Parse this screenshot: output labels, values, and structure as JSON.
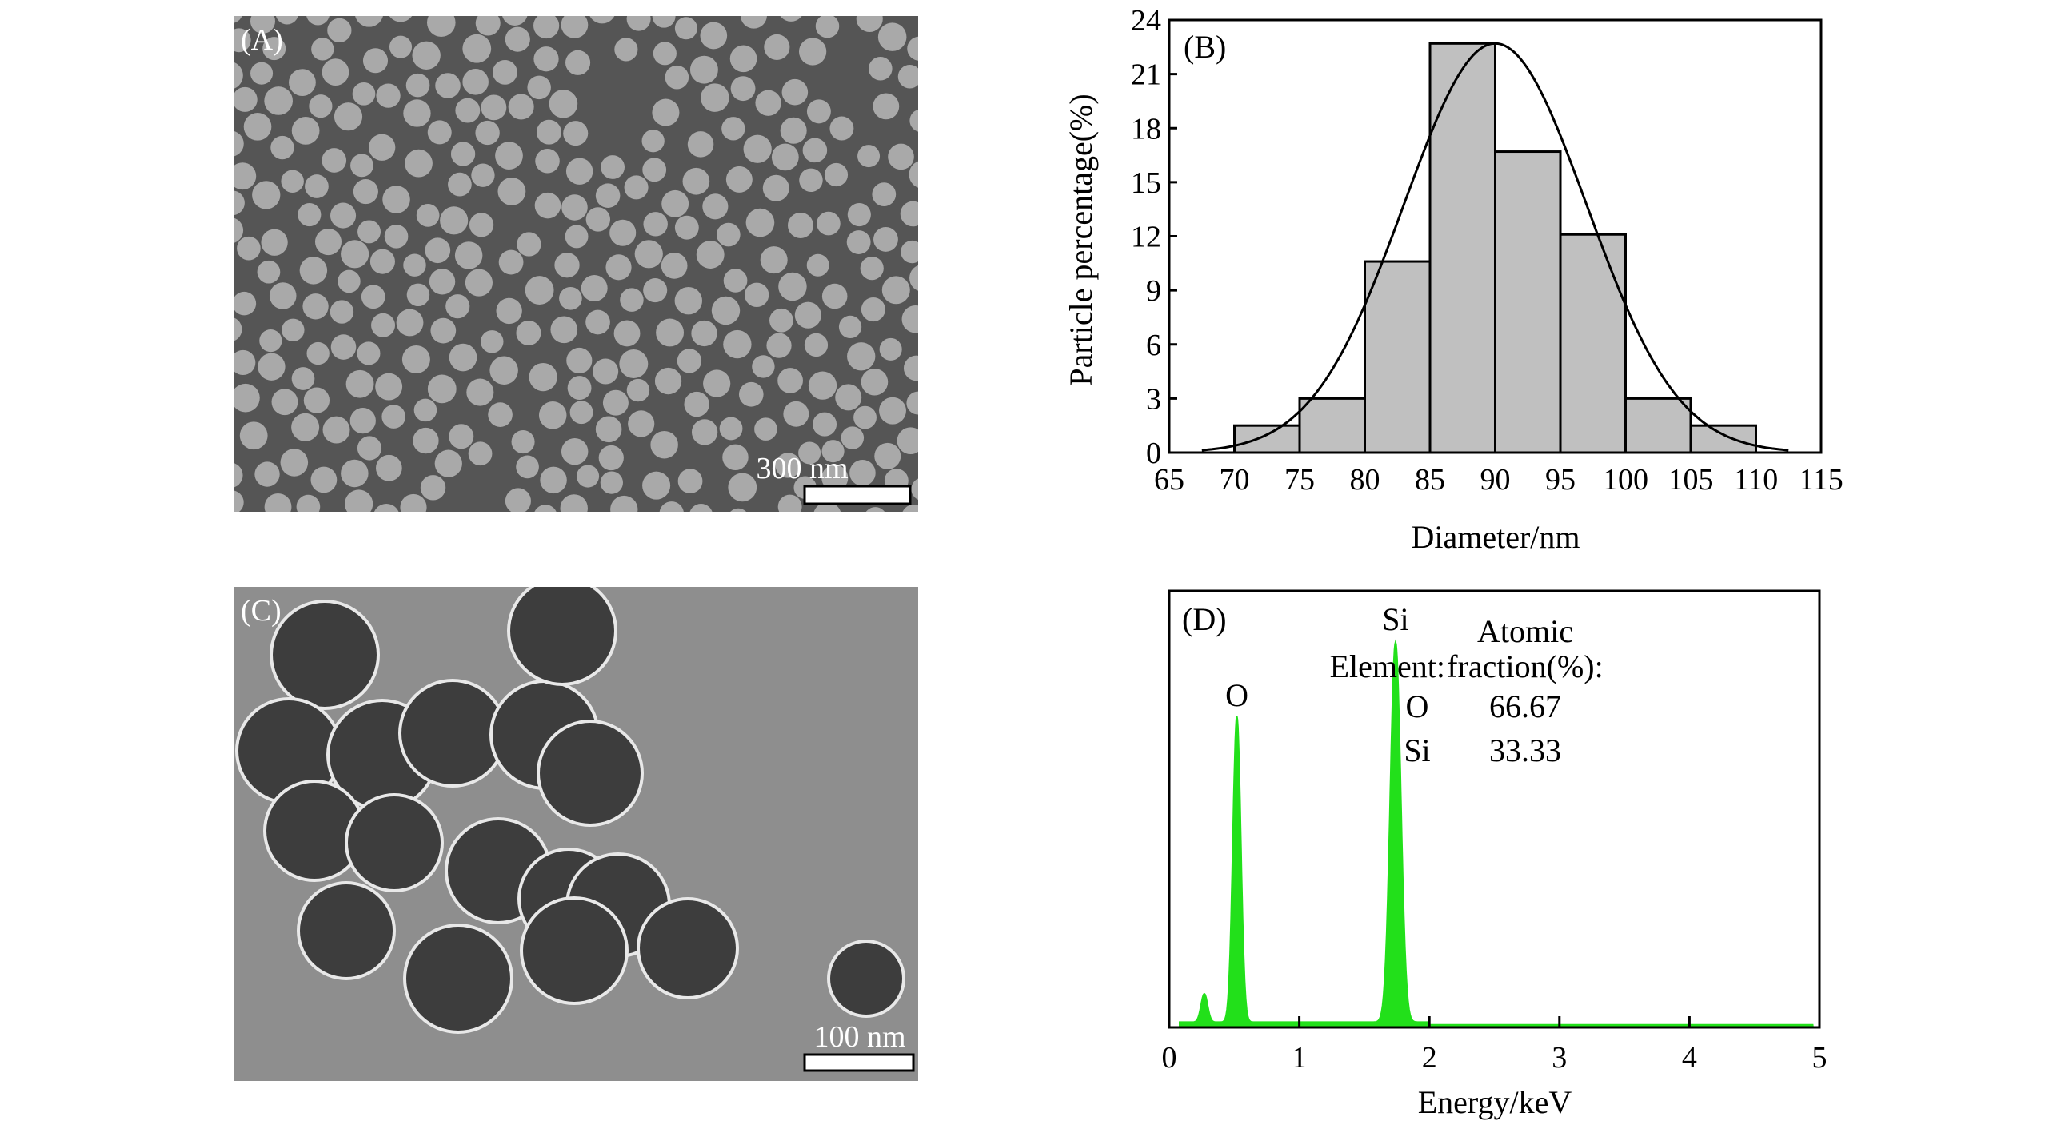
{
  "panels": {
    "a": {
      "label": "(A)",
      "scale_bar": "300 nm"
    },
    "c": {
      "label": "(C)",
      "scale_bar": "100 nm"
    }
  },
  "chart_data": [
    {
      "panel": "(B)",
      "type": "bar",
      "xlabel": "Diameter/nm",
      "ylabel": "Particle percentage(%)",
      "xlim": [
        65,
        115
      ],
      "ylim": [
        0,
        24
      ],
      "xticks": [
        65,
        70,
        75,
        80,
        85,
        90,
        95,
        100,
        105,
        110,
        115
      ],
      "yticks": [
        0,
        3,
        6,
        9,
        12,
        15,
        18,
        21,
        24
      ],
      "bins": [
        [
          70,
          75
        ],
        [
          75,
          80
        ],
        [
          80,
          85
        ],
        [
          85,
          90
        ],
        [
          90,
          95
        ],
        [
          95,
          100
        ],
        [
          100,
          105
        ],
        [
          105,
          110
        ]
      ],
      "values": [
        1.5,
        3.0,
        10.6,
        22.7,
        16.7,
        12.1,
        3.0,
        1.5
      ],
      "bar_color": "#c0c0c0",
      "fit": {
        "type": "gaussian",
        "mean": 90,
        "sigma": 7,
        "peak": 22.7,
        "range": [
          67.5,
          112.5
        ]
      },
      "grid": false
    },
    {
      "panel": "(D)",
      "type": "area",
      "xlabel": "Energy/keV",
      "ylabel": "",
      "xlim": [
        0,
        5
      ],
      "xticks": [
        0,
        1,
        2,
        3,
        4,
        5
      ],
      "color": "#22e01a",
      "peaks": [
        {
          "energy": 0.27,
          "relative_height": 0.065,
          "label": ""
        },
        {
          "energy": 0.52,
          "relative_height": 0.7,
          "label": "O"
        },
        {
          "energy": 1.74,
          "relative_height": 0.87,
          "label": "Si"
        }
      ],
      "table": {
        "header_element": "Element:",
        "header_fraction_1": "Atomic",
        "header_fraction_2": "fraction(%):",
        "rows": [
          {
            "element": "O",
            "fraction": "66.67"
          },
          {
            "element": "Si",
            "fraction": "33.33"
          }
        ]
      },
      "grid": false
    }
  ]
}
